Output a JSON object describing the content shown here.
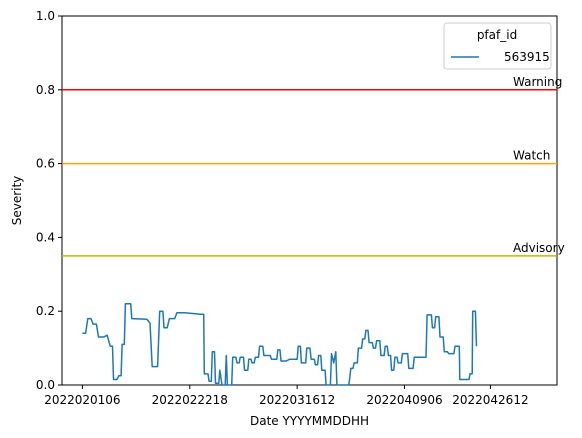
{
  "chart_data": {
    "type": "line",
    "title": "",
    "xlabel": "Date YYYYMMDDHH",
    "ylabel": "Severity",
    "ylim": [
      0,
      1
    ],
    "xlim": [
      -1.9,
      44.2
    ],
    "grid": false,
    "legend": {
      "title": "pfaf_id",
      "placement": "top-right"
    },
    "x_ticks": [
      {
        "pos": 0,
        "label": "2022020106"
      },
      {
        "pos": 10,
        "label": "2022022218"
      },
      {
        "pos": 20,
        "label": "2022031612"
      },
      {
        "pos": 30,
        "label": "2022040906"
      },
      {
        "pos": 38,
        "label": "2022042612"
      }
    ],
    "y_ticks": [
      {
        "value": 0.0,
        "label": "0.0"
      },
      {
        "value": 0.2,
        "label": "0.2"
      },
      {
        "value": 0.4,
        "label": "0.4"
      },
      {
        "value": 0.6,
        "label": "0.6"
      },
      {
        "value": 0.8,
        "label": "0.8"
      },
      {
        "value": 1.0,
        "label": "1.0"
      }
    ],
    "thresholds": [
      {
        "name": "Warning",
        "value": 0.8,
        "color": "#ff0000"
      },
      {
        "name": "Watch",
        "value": 0.6,
        "color": "#ffa500"
      },
      {
        "name": "Advisory",
        "value": 0.35,
        "color": "#c8b400"
      }
    ],
    "series": [
      {
        "name": "563915",
        "color": "#1f77b4",
        "points": [
          [
            0.0,
            0.14
          ],
          [
            0.3,
            0.14
          ],
          [
            0.5,
            0.18
          ],
          [
            0.8,
            0.18
          ],
          [
            1.0,
            0.165
          ],
          [
            1.3,
            0.165
          ],
          [
            1.5,
            0.13
          ],
          [
            2.0,
            0.13
          ],
          [
            2.3,
            0.135
          ],
          [
            2.6,
            0.105
          ],
          [
            2.8,
            0.105
          ],
          [
            2.9,
            0.015
          ],
          [
            3.2,
            0.015
          ],
          [
            3.4,
            0.025
          ],
          [
            3.6,
            0.025
          ],
          [
            3.7,
            0.11
          ],
          [
            3.9,
            0.11
          ],
          [
            4.0,
            0.22
          ],
          [
            4.5,
            0.22
          ],
          [
            4.6,
            0.18
          ],
          [
            6.0,
            0.178
          ],
          [
            6.3,
            0.168
          ],
          [
            6.5,
            0.05
          ],
          [
            7.0,
            0.05
          ],
          [
            7.2,
            0.2
          ],
          [
            7.5,
            0.2
          ],
          [
            7.6,
            0.155
          ],
          [
            7.9,
            0.155
          ],
          [
            8.1,
            0.18
          ],
          [
            8.6,
            0.18
          ],
          [
            8.8,
            0.196
          ],
          [
            9.5,
            0.196
          ],
          [
            11.0,
            0.192
          ],
          [
            11.3,
            0.192
          ],
          [
            11.35,
            0.03
          ],
          [
            11.7,
            0.03
          ],
          [
            11.8,
            0.01
          ],
          [
            12.0,
            0.01
          ],
          [
            12.1,
            0.09
          ],
          [
            12.3,
            0.09
          ],
          [
            12.4,
            0.005
          ],
          [
            12.7,
            0.005
          ],
          [
            12.8,
            0.04
          ],
          [
            13.0,
            0.0
          ],
          [
            13.3,
            0.0
          ],
          [
            13.4,
            0.08
          ],
          [
            13.5,
            0.0
          ],
          [
            13.9,
            0.0
          ],
          [
            14.0,
            0.075
          ],
          [
            14.3,
            0.075
          ],
          [
            14.4,
            0.06
          ],
          [
            14.6,
            0.06
          ],
          [
            14.7,
            0.075
          ],
          [
            15.0,
            0.075
          ],
          [
            15.1,
            0.04
          ],
          [
            15.4,
            0.04
          ],
          [
            15.5,
            0.07
          ],
          [
            15.7,
            0.07
          ],
          [
            15.8,
            0.06
          ],
          [
            16.0,
            0.06
          ],
          [
            16.1,
            0.075
          ],
          [
            16.4,
            0.075
          ],
          [
            16.5,
            0.105
          ],
          [
            16.8,
            0.105
          ],
          [
            16.9,
            0.08
          ],
          [
            17.5,
            0.08
          ],
          [
            17.6,
            0.07
          ],
          [
            18.1,
            0.07
          ],
          [
            18.2,
            0.095
          ],
          [
            18.4,
            0.095
          ],
          [
            18.5,
            0.065
          ],
          [
            19.0,
            0.065
          ],
          [
            19.3,
            0.07
          ],
          [
            20.0,
            0.07
          ],
          [
            20.1,
            0.105
          ],
          [
            20.3,
            0.105
          ],
          [
            20.4,
            0.06
          ],
          [
            20.8,
            0.06
          ],
          [
            20.9,
            0.1
          ],
          [
            21.2,
            0.1
          ],
          [
            21.3,
            0.07
          ],
          [
            21.6,
            0.07
          ],
          [
            21.7,
            0.055
          ],
          [
            21.9,
            0.055
          ],
          [
            22.0,
            0.08
          ],
          [
            22.2,
            0.08
          ],
          [
            22.3,
            0.04
          ],
          [
            22.6,
            0.04
          ],
          [
            22.7,
            0.0
          ],
          [
            23.1,
            0.0
          ],
          [
            23.2,
            0.085
          ],
          [
            23.4,
            0.06
          ],
          [
            23.6,
            0.09
          ],
          [
            23.7,
            0.0
          ],
          [
            24.8,
            0.0
          ],
          [
            24.9,
            0.02
          ],
          [
            25.0,
            0.045
          ],
          [
            25.2,
            0.045
          ],
          [
            25.3,
            0.06
          ],
          [
            25.6,
            0.06
          ],
          [
            25.7,
            0.1
          ],
          [
            26.0,
            0.1
          ],
          [
            26.1,
            0.125
          ],
          [
            26.3,
            0.125
          ],
          [
            26.4,
            0.148
          ],
          [
            26.6,
            0.148
          ],
          [
            26.7,
            0.115
          ],
          [
            27.0,
            0.115
          ],
          [
            27.1,
            0.1
          ],
          [
            27.3,
            0.1
          ],
          [
            27.4,
            0.12
          ],
          [
            27.7,
            0.12
          ],
          [
            27.8,
            0.08
          ],
          [
            28.1,
            0.08
          ],
          [
            28.2,
            0.105
          ],
          [
            28.4,
            0.105
          ],
          [
            28.5,
            0.08
          ],
          [
            28.7,
            0.08
          ],
          [
            28.8,
            0.04
          ],
          [
            29.0,
            0.04
          ],
          [
            29.1,
            0.075
          ],
          [
            29.3,
            0.075
          ],
          [
            29.4,
            0.06
          ],
          [
            29.7,
            0.06
          ],
          [
            29.8,
            0.085
          ],
          [
            30.3,
            0.085
          ],
          [
            30.4,
            0.045
          ],
          [
            30.8,
            0.045
          ],
          [
            30.9,
            0.075
          ],
          [
            31.2,
            0.075
          ],
          [
            31.3,
            0.075
          ],
          [
            31.5,
            0.075
          ],
          [
            32.0,
            0.075
          ],
          [
            32.1,
            0.19
          ],
          [
            32.5,
            0.19
          ],
          [
            32.6,
            0.155
          ],
          [
            32.8,
            0.155
          ],
          [
            32.9,
            0.185
          ],
          [
            33.2,
            0.185
          ],
          [
            33.3,
            0.13
          ],
          [
            33.6,
            0.13
          ],
          [
            33.7,
            0.09
          ],
          [
            34.0,
            0.09
          ],
          [
            34.1,
            0.085
          ],
          [
            34.6,
            0.085
          ],
          [
            34.7,
            0.105
          ],
          [
            35.1,
            0.105
          ],
          [
            35.15,
            0.015
          ],
          [
            35.5,
            0.015
          ],
          [
            36.0,
            0.015
          ],
          [
            36.1,
            0.03
          ],
          [
            36.3,
            0.03
          ],
          [
            36.35,
            0.2
          ],
          [
            36.6,
            0.2
          ],
          [
            36.7,
            0.105
          ]
        ]
      }
    ]
  }
}
